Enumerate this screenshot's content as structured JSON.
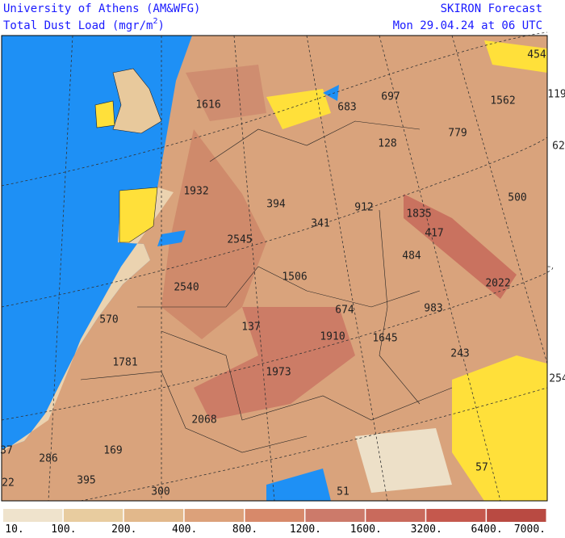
{
  "header": {
    "left": {
      "line1": "University of Athens (AM&WFG)",
      "line2": "Total Dust Load (mgr/m",
      "line2_sup": "2",
      "line2_end": ")"
    },
    "right": {
      "line1": "SKIRON Forecast",
      "line2": "Mon 29.04.24 at 06 UTC"
    }
  },
  "map": {
    "labels": [
      1616,
      683,
      697,
      1562,
      454,
      119,
      779,
      128,
      62,
      1932,
      500,
      394,
      912,
      1835,
      341,
      2545,
      417,
      484,
      1506,
      2022,
      2540,
      674,
      983,
      570,
      137,
      1910,
      1645,
      243,
      1781,
      1973,
      254,
      2068,
      37,
      286,
      169,
      57,
      22,
      395,
      300,
      51
    ]
  },
  "colorbar": {
    "ticks": [
      "10.",
      "100.",
      "200.",
      "400.",
      "800.",
      "1200.",
      "1600.",
      "3200.",
      "6400.",
      "7000."
    ],
    "colors": [
      "#efe3cc",
      "#e8cc9f",
      "#e2b88b",
      "#dca17a",
      "#d7896a",
      "#cc7a6a",
      "#c96a5c",
      "#c5584d",
      "#b94a42"
    ]
  }
}
